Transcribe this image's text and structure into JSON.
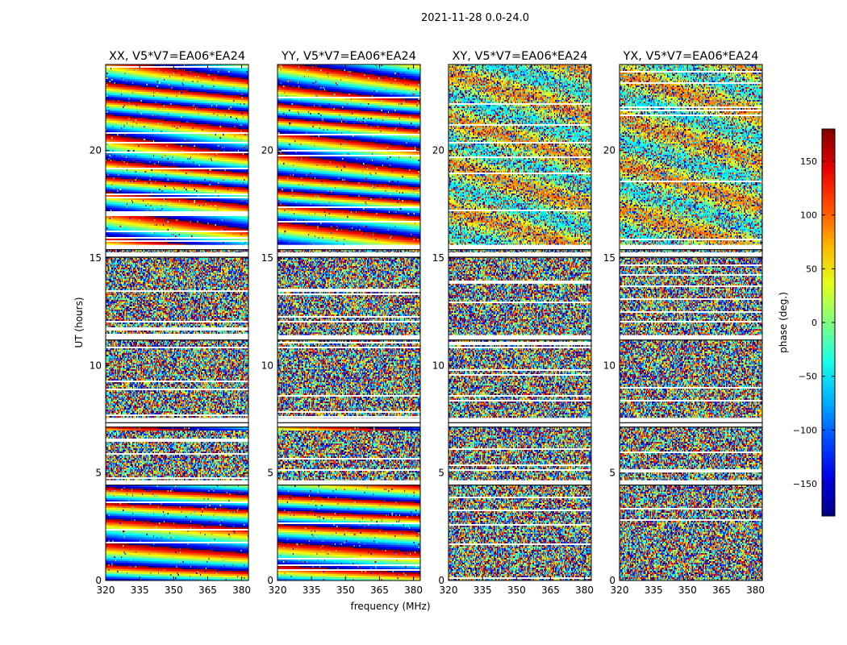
{
  "figure": {
    "suptitle": "2021-11-28 0.0-24.0",
    "xlabel": "frequency (MHz)",
    "ylabel": "UT (hours)"
  },
  "chart_data": {
    "type": "heatmap",
    "x_range": [
      320,
      383
    ],
    "y_range": [
      0,
      24
    ],
    "x_ticks": [
      320,
      335,
      350,
      365,
      380
    ],
    "y_ticks": [
      0,
      5,
      10,
      15,
      20
    ],
    "panels": [
      {
        "title": "XX, V5*V7=EA06*EA24",
        "kind": "parallel"
      },
      {
        "title": "YY, V5*V7=EA06*EA24",
        "kind": "parallel"
      },
      {
        "title": "XY, V5*V7=EA06*EA24",
        "kind": "cross"
      },
      {
        "title": "YX, V5*V7=EA06*EA24",
        "kind": "cross"
      }
    ],
    "colorbar": {
      "label": "phase (deg.)",
      "range": [
        -180,
        180
      ],
      "ticks": [
        150,
        100,
        50,
        0,
        -50,
        -100,
        -150
      ],
      "colormap": "jet"
    },
    "flagged_gaps_hours": [
      4.55,
      7.25,
      7.45,
      11.3,
      15.15,
      15.5
    ],
    "coherent_phase_intervals_hours": [
      [
        0,
        4.5
      ],
      [
        7.0,
        7.3
      ],
      [
        15.5,
        24
      ]
    ]
  }
}
